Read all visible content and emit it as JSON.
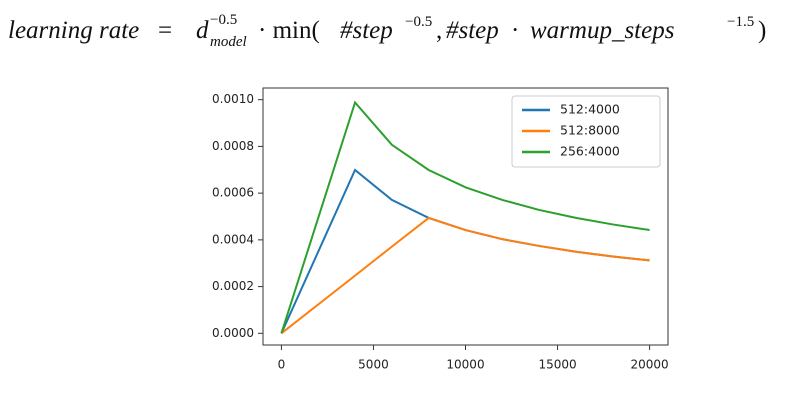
{
  "chart_data": {
    "type": "line",
    "title": [
      "learning rate",
      " = ",
      "d",
      "−0.5",
      "model",
      " · min(",
      "#step",
      "−0.5",
      ", ",
      "#step",
      " · ",
      "warmup_steps",
      "−1.5",
      ")"
    ],
    "x": [
      0,
      4000,
      6000,
      8000,
      10000,
      12000,
      14000,
      16000,
      18000,
      20000
    ],
    "series": [
      {
        "name": "512:4000",
        "color": "#1f77b4",
        "values": [
          0,
          0.000699,
          0.000571,
          0.000494,
          0.000442,
          0.000403,
          0.000374,
          0.000349,
          0.000329,
          0.000312
        ]
      },
      {
        "name": "512:8000",
        "color": "#ff7f0e",
        "values": [
          0,
          0.000247,
          0.000371,
          0.000494,
          0.000442,
          0.000403,
          0.000374,
          0.000349,
          0.000329,
          0.000312
        ]
      },
      {
        "name": "256:4000",
        "color": "#2ca02c",
        "values": [
          0,
          0.000988,
          0.000807,
          0.000699,
          0.000625,
          0.000571,
          0.000528,
          0.000494,
          0.000466,
          0.000442
        ]
      }
    ],
    "xlim": [
      -1000,
      21000
    ],
    "ylim": [
      -5e-05,
      0.00105
    ],
    "xticks": [
      0,
      5000,
      10000,
      15000,
      20000
    ],
    "yticks": [
      {
        "value": 0,
        "label": "0.0000"
      },
      {
        "value": 0.0002,
        "label": "0.0002"
      },
      {
        "value": 0.0004,
        "label": "0.0004"
      },
      {
        "value": 0.0006,
        "label": "0.0006"
      },
      {
        "value": 0.0008,
        "label": "0.0008"
      },
      {
        "value": 0.001,
        "label": "0.0010"
      }
    ],
    "legend": "upper right",
    "grid": false
  }
}
